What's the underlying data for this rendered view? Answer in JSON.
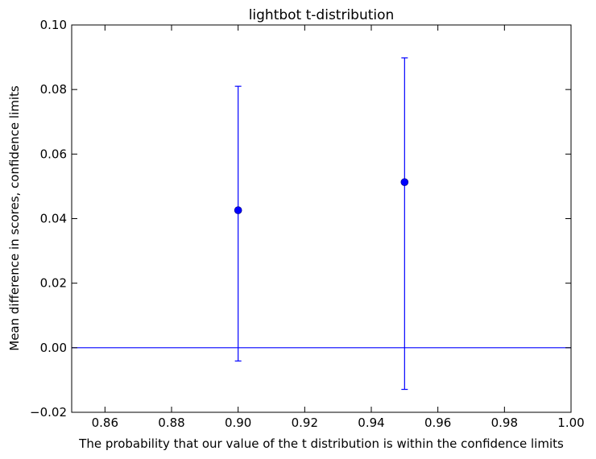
{
  "chart_data": {
    "type": "scatter",
    "title": "lightbot t-distribution",
    "xlabel": "The probability that our value of the t distribution is within the confidence limits",
    "ylabel": "Mean difference in scores, confidence limits",
    "xlim": [
      0.85,
      1.0
    ],
    "ylim": [
      -0.02,
      0.1
    ],
    "x_ticks": [
      "0.86",
      "0.88",
      "0.90",
      "0.92",
      "0.94",
      "0.96",
      "0.98",
      "1.00"
    ],
    "y_ticks": [
      "−0.02",
      "0.00",
      "0.02",
      "0.04",
      "0.06",
      "0.08",
      "0.10"
    ],
    "grid": false,
    "series": [
      {
        "points": [
          {
            "x": 0.9,
            "y": 0.0426,
            "lower": -0.0041,
            "upper": 0.081
          },
          {
            "x": 0.95,
            "y": 0.0513,
            "lower": -0.0129,
            "upper": 0.0898
          }
        ]
      }
    ],
    "reference_line": {
      "y": 0.0
    },
    "colors": {
      "series": "#0000ff",
      "axis": "#000000"
    }
  }
}
